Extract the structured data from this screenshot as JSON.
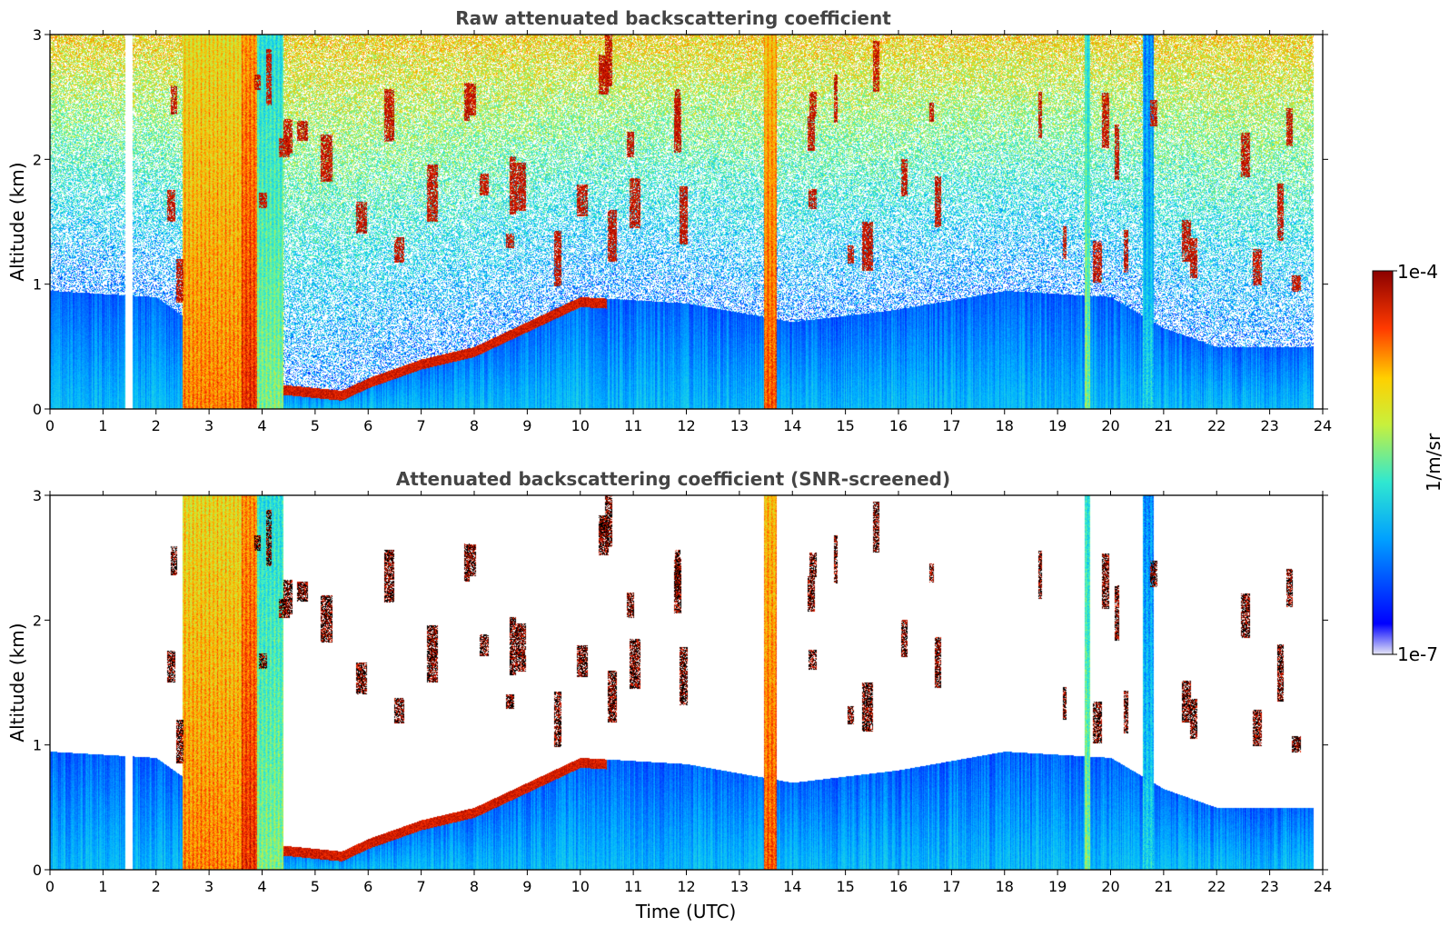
{
  "chart_data": [
    {
      "type": "heatmap",
      "title": "Raw attenuated backscattering coefficient",
      "xlabel": "",
      "ylabel": "Altitude (km)",
      "xlim": [
        0,
        24
      ],
      "ylim": [
        0,
        3
      ],
      "x_ticks": [
        "0",
        "1",
        "2",
        "3",
        "4",
        "5",
        "6",
        "7",
        "8",
        "9",
        "10",
        "11",
        "12",
        "13",
        "14",
        "15",
        "16",
        "17",
        "18",
        "19",
        "20",
        "21",
        "22",
        "23",
        "24"
      ],
      "y_ticks": [
        "0",
        "1",
        "2",
        "3"
      ],
      "screened": false,
      "features": {
        "boundary_layer": [
          {
            "t": 0,
            "h": 0.95
          },
          {
            "t": 2,
            "h": 0.9
          },
          {
            "t": 4.3,
            "h": 0.2
          },
          {
            "t": 5.5,
            "h": 0.15
          },
          {
            "t": 6,
            "h": 0.25
          },
          {
            "t": 7,
            "h": 0.4
          },
          {
            "t": 8,
            "h": 0.5
          },
          {
            "t": 9,
            "h": 0.7
          },
          {
            "t": 10,
            "h": 0.9
          },
          {
            "t": 12,
            "h": 0.85
          },
          {
            "t": 14,
            "h": 0.7
          },
          {
            "t": 16,
            "h": 0.8
          },
          {
            "t": 18,
            "h": 0.95
          },
          {
            "t": 20,
            "h": 0.9
          },
          {
            "t": 21,
            "h": 0.65
          },
          {
            "t": 22,
            "h": 0.5
          },
          {
            "t": 23.8,
            "h": 0.5
          }
        ],
        "rain_columns": [
          {
            "t0": 2.5,
            "t1": 3.6,
            "level": 0.85
          },
          {
            "t0": 3.6,
            "t1": 3.9,
            "level": 0.95
          },
          {
            "t0": 3.9,
            "t1": 4.4,
            "level": 0.6
          },
          {
            "t0": 13.45,
            "t1": 13.7,
            "level": 0.9
          },
          {
            "t0": 19.5,
            "t1": 19.6,
            "level": 0.6
          },
          {
            "t0": 20.6,
            "t1": 20.8,
            "level": 0.45
          }
        ],
        "missing_data": [
          {
            "t0": 1.42,
            "t1": 1.55
          },
          {
            "t0": 23.82,
            "t1": 24
          }
        ]
      }
    },
    {
      "type": "heatmap",
      "title": "Attenuated backscattering coefficient (SNR-screened)",
      "xlabel": "Time (UTC)",
      "ylabel": "Altitude (km)",
      "xlim": [
        0,
        24
      ],
      "ylim": [
        0,
        3
      ],
      "x_ticks": [
        "0",
        "1",
        "2",
        "3",
        "4",
        "5",
        "6",
        "7",
        "8",
        "9",
        "10",
        "11",
        "12",
        "13",
        "14",
        "15",
        "16",
        "17",
        "18",
        "19",
        "20",
        "21",
        "22",
        "23",
        "24"
      ],
      "y_ticks": [
        "0",
        "1",
        "2",
        "3"
      ],
      "screened": true
    }
  ],
  "colorbar": {
    "label": "1/m/sr",
    "max_label": "1e-4",
    "min_label": "1e-7",
    "scale": "log",
    "colormap": "jet",
    "stops": [
      "#e6e6f5",
      "#0000ff",
      "#00b4ff",
      "#3cf0c8",
      "#c8f03c",
      "#ffb400",
      "#ff3200",
      "#8b0000"
    ]
  }
}
